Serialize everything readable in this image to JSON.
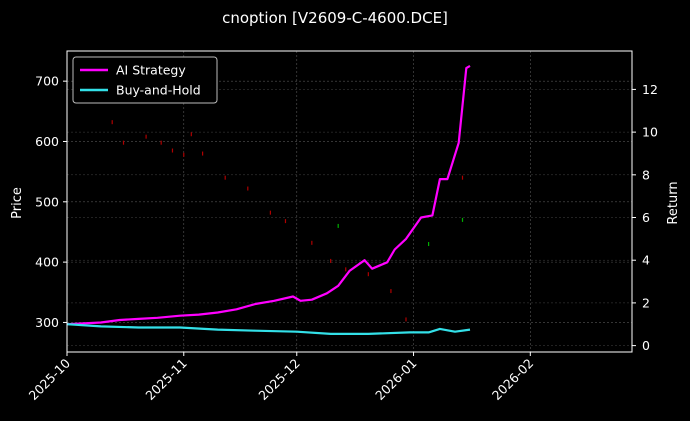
{
  "chart_data": {
    "type": "line",
    "title": "cnoption [V2609-C-4600.DCE]",
    "ylabel": "Price",
    "y2label": "Return",
    "xlim": [
      "2025-10-01",
      "2026-02-28"
    ],
    "ylim": [
      251,
      750
    ],
    "y2lim": [
      -0.3,
      13.8
    ],
    "xticks": [
      "2025-10",
      "2025-11",
      "2025-12",
      "2026-01",
      "2026-02"
    ],
    "yticks": [
      300,
      400,
      500,
      600,
      700
    ],
    "y2ticks": [
      0,
      2,
      4,
      6,
      8,
      10,
      12
    ],
    "grid": true,
    "legend_position": "top-left",
    "series": [
      {
        "name": "AI Strategy",
        "axis": "right",
        "color": "#ff00ff",
        "points": [
          [
            "2025-10-01",
            1.0
          ],
          [
            "2025-10-10",
            1.08
          ],
          [
            "2025-10-15",
            1.2
          ],
          [
            "2025-10-20",
            1.25
          ],
          [
            "2025-10-25",
            1.3
          ],
          [
            "2025-10-31",
            1.4
          ],
          [
            "2025-11-05",
            1.45
          ],
          [
            "2025-11-10",
            1.55
          ],
          [
            "2025-11-15",
            1.7
          ],
          [
            "2025-11-20",
            1.95
          ],
          [
            "2025-11-25",
            2.1
          ],
          [
            "2025-11-30",
            2.3
          ],
          [
            "2025-12-02",
            2.1
          ],
          [
            "2025-12-05",
            2.15
          ],
          [
            "2025-12-09",
            2.45
          ],
          [
            "2025-12-12",
            2.8
          ],
          [
            "2025-12-15",
            3.5
          ],
          [
            "2025-12-19",
            4.0
          ],
          [
            "2025-12-21",
            3.6
          ],
          [
            "2025-12-25",
            3.9
          ],
          [
            "2025-12-27",
            4.5
          ],
          [
            "2025-12-30",
            5.0
          ],
          [
            "2026-01-03",
            6.0
          ],
          [
            "2026-01-06",
            6.1
          ],
          [
            "2026-01-08",
            7.8
          ],
          [
            "2026-01-10",
            7.8
          ],
          [
            "2026-01-13",
            9.5
          ],
          [
            "2026-01-15",
            13.0
          ],
          [
            "2026-01-16",
            13.1
          ]
        ]
      },
      {
        "name": "Buy-and-Hold",
        "axis": "right",
        "color": "#33e0e8",
        "points": [
          [
            "2025-10-01",
            1.0
          ],
          [
            "2025-10-10",
            0.9
          ],
          [
            "2025-10-20",
            0.85
          ],
          [
            "2025-10-31",
            0.85
          ],
          [
            "2025-11-10",
            0.75
          ],
          [
            "2025-11-20",
            0.7
          ],
          [
            "2025-12-01",
            0.65
          ],
          [
            "2025-12-10",
            0.55
          ],
          [
            "2025-12-20",
            0.55
          ],
          [
            "2025-12-31",
            0.62
          ],
          [
            "2026-01-05",
            0.62
          ],
          [
            "2026-01-08",
            0.78
          ],
          [
            "2026-01-12",
            0.65
          ],
          [
            "2026-01-16",
            0.75
          ]
        ]
      }
    ],
    "markers": [
      {
        "color": "#b00000",
        "points": [
          [
            "2025-10-13",
            632
          ],
          [
            "2025-10-16",
            598
          ],
          [
            "2025-10-22",
            608
          ],
          [
            "2025-10-26",
            598
          ],
          [
            "2025-10-29",
            585
          ],
          [
            "2025-11-01",
            578
          ],
          [
            "2025-11-03",
            612
          ],
          [
            "2025-11-06",
            580
          ],
          [
            "2025-11-12",
            540
          ],
          [
            "2025-11-18",
            522
          ],
          [
            "2025-11-24",
            482
          ],
          [
            "2025-11-28",
            468
          ],
          [
            "2025-12-05",
            432
          ],
          [
            "2025-12-10",
            402
          ],
          [
            "2025-12-14",
            388
          ],
          [
            "2025-12-20",
            380
          ],
          [
            "2025-12-26",
            352
          ],
          [
            "2025-12-30",
            305
          ],
          [
            "2026-01-14",
            540
          ]
        ]
      },
      {
        "color": "#00b000",
        "points": [
          [
            "2025-12-12",
            460
          ],
          [
            "2026-01-05",
            430
          ],
          [
            "2026-01-14",
            470
          ]
        ]
      }
    ]
  }
}
